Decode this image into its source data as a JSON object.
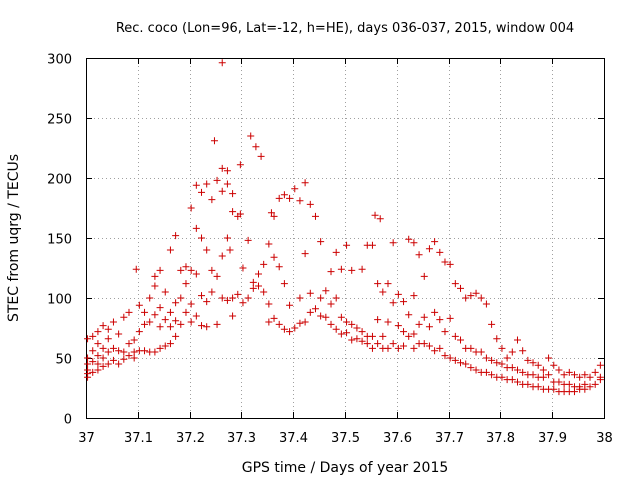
{
  "chart_data": {
    "type": "scatter",
    "title": "Rec. coco (Lon=96, Lat=-12, h=HE), days 036-037, 2015, window 004",
    "xlabel": "GPS time / Days of year 2015",
    "ylabel": "STEC from uqrg / TECUs",
    "xlim": [
      37,
      38
    ],
    "ylim": [
      0,
      300
    ],
    "x_ticks": [
      "37",
      "37.1",
      "37.2",
      "37.3",
      "37.4",
      "37.5",
      "37.6",
      "37.7",
      "37.8",
      "37.9",
      "38"
    ],
    "y_ticks": [
      "0",
      "50",
      "100",
      "150",
      "200",
      "250",
      "300"
    ],
    "grid": true,
    "marker": "plus",
    "color": "#cc0000",
    "points": [
      [
        37.003,
        50
      ],
      [
        37.003,
        45
      ],
      [
        37.003,
        40
      ],
      [
        37.003,
        37
      ],
      [
        37.003,
        34
      ],
      [
        37.003,
        66
      ],
      [
        37.013,
        56
      ],
      [
        37.013,
        47
      ],
      [
        37.013,
        38
      ],
      [
        37.013,
        68
      ],
      [
        37.023,
        52
      ],
      [
        37.023,
        45
      ],
      [
        37.023,
        40
      ],
      [
        37.023,
        62
      ],
      [
        37.023,
        72
      ],
      [
        37.033,
        58
      ],
      [
        37.033,
        50
      ],
      [
        37.033,
        43
      ],
      [
        37.033,
        77
      ],
      [
        37.043,
        55
      ],
      [
        37.043,
        45
      ],
      [
        37.043,
        66
      ],
      [
        37.043,
        74
      ],
      [
        37.053,
        58
      ],
      [
        37.053,
        48
      ],
      [
        37.053,
        80
      ],
      [
        37.063,
        56
      ],
      [
        37.063,
        45
      ],
      [
        37.063,
        70
      ],
      [
        37.073,
        55
      ],
      [
        37.073,
        49
      ],
      [
        37.073,
        84
      ],
      [
        37.083,
        62
      ],
      [
        37.083,
        52
      ],
      [
        37.083,
        88
      ],
      [
        37.093,
        65
      ],
      [
        37.093,
        55
      ],
      [
        37.093,
        50
      ],
      [
        37.097,
        124
      ],
      [
        37.103,
        72
      ],
      [
        37.103,
        56
      ],
      [
        37.103,
        94
      ],
      [
        37.113,
        78
      ],
      [
        37.113,
        56
      ],
      [
        37.113,
        88
      ],
      [
        37.123,
        100
      ],
      [
        37.123,
        80
      ],
      [
        37.123,
        55
      ],
      [
        37.133,
        110
      ],
      [
        37.133,
        86
      ],
      [
        37.133,
        55
      ],
      [
        37.133,
        118
      ],
      [
        37.143,
        123
      ],
      [
        37.143,
        92
      ],
      [
        37.143,
        76
      ],
      [
        37.143,
        58
      ],
      [
        37.153,
        105
      ],
      [
        37.153,
        82
      ],
      [
        37.153,
        60
      ],
      [
        37.163,
        140
      ],
      [
        37.163,
        88
      ],
      [
        37.163,
        76
      ],
      [
        37.163,
        62
      ],
      [
        37.173,
        152
      ],
      [
        37.173,
        96
      ],
      [
        37.173,
        81
      ],
      [
        37.173,
        68
      ],
      [
        37.183,
        123
      ],
      [
        37.183,
        100
      ],
      [
        37.183,
        78
      ],
      [
        37.193,
        126
      ],
      [
        37.193,
        112
      ],
      [
        37.193,
        88
      ],
      [
        37.203,
        175
      ],
      [
        37.203,
        123
      ],
      [
        37.203,
        95
      ],
      [
        37.203,
        80
      ],
      [
        37.213,
        194
      ],
      [
        37.213,
        158
      ],
      [
        37.213,
        120
      ],
      [
        37.213,
        85
      ],
      [
        37.223,
        188
      ],
      [
        37.223,
        150
      ],
      [
        37.223,
        102
      ],
      [
        37.223,
        77
      ],
      [
        37.233,
        195
      ],
      [
        37.233,
        140
      ],
      [
        37.233,
        97
      ],
      [
        37.233,
        76
      ],
      [
        37.243,
        182
      ],
      [
        37.243,
        123
      ],
      [
        37.243,
        105
      ],
      [
        37.248,
        231
      ],
      [
        37.253,
        198
      ],
      [
        37.253,
        118
      ],
      [
        37.253,
        78
      ],
      [
        37.263,
        296
      ],
      [
        37.263,
        208
      ],
      [
        37.263,
        189
      ],
      [
        37.263,
        135
      ],
      [
        37.263,
        100
      ],
      [
        37.273,
        206
      ],
      [
        37.273,
        195
      ],
      [
        37.273,
        150
      ],
      [
        37.273,
        98
      ],
      [
        37.278,
        140
      ],
      [
        37.283,
        187
      ],
      [
        37.283,
        172
      ],
      [
        37.283,
        100
      ],
      [
        37.283,
        85
      ],
      [
        37.293,
        168
      ],
      [
        37.293,
        103
      ],
      [
        37.298,
        211
      ],
      [
        37.298,
        170
      ],
      [
        37.303,
        125
      ],
      [
        37.303,
        96
      ],
      [
        37.313,
        148
      ],
      [
        37.313,
        100
      ],
      [
        37.318,
        235
      ],
      [
        37.323,
        113
      ],
      [
        37.323,
        108
      ],
      [
        37.328,
        226
      ],
      [
        37.333,
        120
      ],
      [
        37.333,
        110
      ],
      [
        37.338,
        218
      ],
      [
        37.343,
        128
      ],
      [
        37.343,
        105
      ],
      [
        37.353,
        145
      ],
      [
        37.353,
        95
      ],
      [
        37.353,
        80
      ],
      [
        37.358,
        171
      ],
      [
        37.363,
        168
      ],
      [
        37.363,
        134
      ],
      [
        37.363,
        83
      ],
      [
        37.373,
        183
      ],
      [
        37.373,
        126
      ],
      [
        37.373,
        78
      ],
      [
        37.383,
        186
      ],
      [
        37.383,
        112
      ],
      [
        37.383,
        74
      ],
      [
        37.393,
        183
      ],
      [
        37.393,
        94
      ],
      [
        37.393,
        72
      ],
      [
        37.403,
        191
      ],
      [
        37.403,
        75
      ],
      [
        37.413,
        181
      ],
      [
        37.413,
        100
      ],
      [
        37.413,
        79
      ],
      [
        37.423,
        196
      ],
      [
        37.423,
        137
      ],
      [
        37.423,
        80
      ],
      [
        37.433,
        178
      ],
      [
        37.433,
        104
      ],
      [
        37.433,
        88
      ],
      [
        37.443,
        168
      ],
      [
        37.443,
        91
      ],
      [
        37.453,
        147
      ],
      [
        37.453,
        100
      ],
      [
        37.453,
        85
      ],
      [
        37.463,
        106
      ],
      [
        37.463,
        84
      ],
      [
        37.473,
        122
      ],
      [
        37.473,
        95
      ],
      [
        37.473,
        78
      ],
      [
        37.483,
        138
      ],
      [
        37.483,
        100
      ],
      [
        37.483,
        74
      ],
      [
        37.493,
        124
      ],
      [
        37.493,
        84
      ],
      [
        37.493,
        70
      ],
      [
        37.503,
        144
      ],
      [
        37.503,
        80
      ],
      [
        37.503,
        71
      ],
      [
        37.513,
        123
      ],
      [
        37.513,
        78
      ],
      [
        37.513,
        65
      ],
      [
        37.523,
        75
      ],
      [
        37.523,
        66
      ],
      [
        37.533,
        124
      ],
      [
        37.533,
        72
      ],
      [
        37.533,
        64
      ],
      [
        37.543,
        144
      ],
      [
        37.543,
        68
      ],
      [
        37.543,
        62
      ],
      [
        37.553,
        144
      ],
      [
        37.553,
        68
      ],
      [
        37.553,
        58
      ],
      [
        37.558,
        169
      ],
      [
        37.563,
        112
      ],
      [
        37.563,
        82
      ],
      [
        37.563,
        62
      ],
      [
        37.568,
        166
      ],
      [
        37.573,
        105
      ],
      [
        37.573,
        68
      ],
      [
        37.573,
        58
      ],
      [
        37.583,
        112
      ],
      [
        37.583,
        80
      ],
      [
        37.583,
        58
      ],
      [
        37.593,
        146
      ],
      [
        37.593,
        96
      ],
      [
        37.593,
        62
      ],
      [
        37.603,
        103
      ],
      [
        37.603,
        77
      ],
      [
        37.603,
        58
      ],
      [
        37.613,
        97
      ],
      [
        37.613,
        72
      ],
      [
        37.613,
        60
      ],
      [
        37.623,
        149
      ],
      [
        37.623,
        86
      ],
      [
        37.623,
        68
      ],
      [
        37.633,
        146
      ],
      [
        37.633,
        102
      ],
      [
        37.633,
        70
      ],
      [
        37.633,
        58
      ],
      [
        37.643,
        136
      ],
      [
        37.643,
        78
      ],
      [
        37.643,
        62
      ],
      [
        37.653,
        118
      ],
      [
        37.653,
        84
      ],
      [
        37.653,
        62
      ],
      [
        37.663,
        141
      ],
      [
        37.663,
        76
      ],
      [
        37.663,
        60
      ],
      [
        37.673,
        147
      ],
      [
        37.673,
        88
      ],
      [
        37.673,
        56
      ],
      [
        37.683,
        138
      ],
      [
        37.683,
        82
      ],
      [
        37.683,
        58
      ],
      [
        37.693,
        130
      ],
      [
        37.693,
        72
      ],
      [
        37.693,
        52
      ],
      [
        37.703,
        128
      ],
      [
        37.703,
        83
      ],
      [
        37.703,
        50
      ],
      [
        37.713,
        112
      ],
      [
        37.713,
        68
      ],
      [
        37.713,
        48
      ],
      [
        37.723,
        108
      ],
      [
        37.723,
        65
      ],
      [
        37.723,
        46
      ],
      [
        37.733,
        100
      ],
      [
        37.733,
        58
      ],
      [
        37.733,
        45
      ],
      [
        37.743,
        102
      ],
      [
        37.743,
        58
      ],
      [
        37.743,
        42
      ],
      [
        37.753,
        104
      ],
      [
        37.753,
        55
      ],
      [
        37.753,
        40
      ],
      [
        37.763,
        100
      ],
      [
        37.763,
        55
      ],
      [
        37.763,
        38
      ],
      [
        37.773,
        95
      ],
      [
        37.773,
        50
      ],
      [
        37.773,
        38
      ],
      [
        37.783,
        78
      ],
      [
        37.783,
        48
      ],
      [
        37.783,
        36
      ],
      [
        37.793,
        66
      ],
      [
        37.793,
        46
      ],
      [
        37.793,
        34
      ],
      [
        37.803,
        58
      ],
      [
        37.803,
        45
      ],
      [
        37.803,
        34
      ],
      [
        37.813,
        50
      ],
      [
        37.813,
        42
      ],
      [
        37.813,
        32
      ],
      [
        37.823,
        55
      ],
      [
        37.823,
        42
      ],
      [
        37.823,
        32
      ],
      [
        37.833,
        65
      ],
      [
        37.833,
        40
      ],
      [
        37.833,
        30
      ],
      [
        37.843,
        56
      ],
      [
        37.843,
        38
      ],
      [
        37.843,
        28
      ],
      [
        37.853,
        48
      ],
      [
        37.853,
        36
      ],
      [
        37.853,
        28
      ],
      [
        37.863,
        46
      ],
      [
        37.863,
        36
      ],
      [
        37.863,
        26
      ],
      [
        37.873,
        44
      ],
      [
        37.873,
        34
      ],
      [
        37.873,
        26
      ],
      [
        37.883,
        40
      ],
      [
        37.883,
        34
      ],
      [
        37.883,
        24
      ],
      [
        37.893,
        50
      ],
      [
        37.893,
        36
      ],
      [
        37.893,
        24
      ],
      [
        37.903,
        44
      ],
      [
        37.903,
        30
      ],
      [
        37.903,
        24
      ],
      [
        37.913,
        40
      ],
      [
        37.913,
        30
      ],
      [
        37.913,
        22
      ],
      [
        37.923,
        36
      ],
      [
        37.923,
        28
      ],
      [
        37.923,
        22
      ],
      [
        37.933,
        38
      ],
      [
        37.933,
        28
      ],
      [
        37.933,
        22
      ],
      [
        37.943,
        36
      ],
      [
        37.943,
        26
      ],
      [
        37.943,
        22
      ],
      [
        37.953,
        34
      ],
      [
        37.953,
        26
      ],
      [
        37.953,
        24
      ],
      [
        37.963,
        36
      ],
      [
        37.963,
        28
      ],
      [
        37.963,
        24
      ],
      [
        37.973,
        34
      ],
      [
        37.973,
        26
      ],
      [
        37.983,
        38
      ],
      [
        37.983,
        28
      ],
      [
        37.993,
        44
      ],
      [
        37.993,
        32
      ],
      [
        37.993,
        34
      ]
    ]
  }
}
